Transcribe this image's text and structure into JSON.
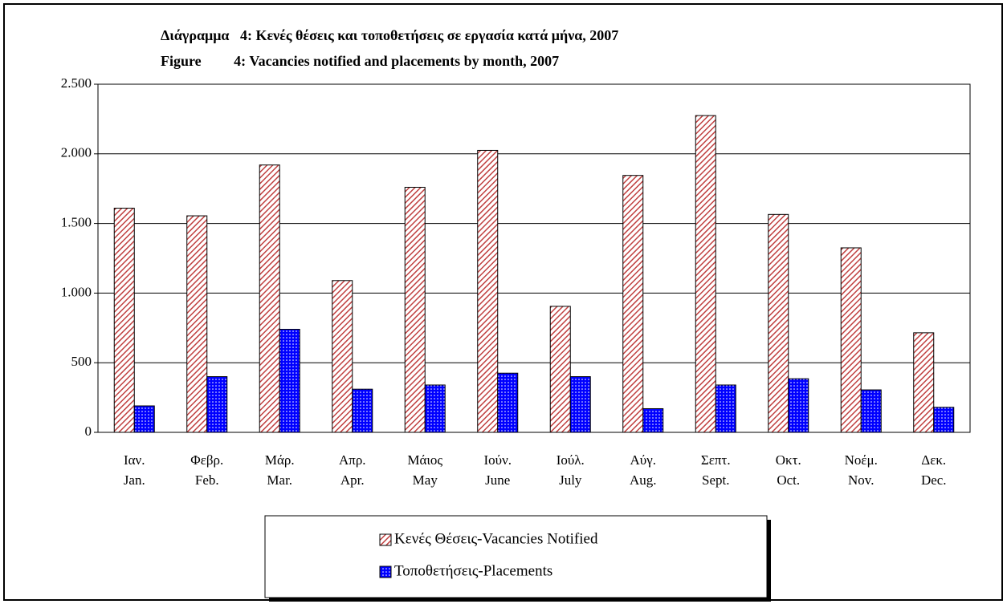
{
  "chart_data": {
    "type": "bar",
    "title": "Διάγραμμα   4: Κενές θέσεις και τοποθετήσεις σε εργασία κατά μήνα, 2007",
    "subtitle": "Figure         4: Vacancies notified and placements by month, 2007",
    "categories": [
      [
        "Ιαν.",
        "Jan."
      ],
      [
        "Φεβρ.",
        "Feb."
      ],
      [
        "Μάρ.",
        "Mar."
      ],
      [
        "Απρ.",
        "Apr."
      ],
      [
        "Μάιος",
        "May"
      ],
      [
        "Ιούν.",
        "June"
      ],
      [
        "Ιούλ.",
        "July"
      ],
      [
        "Αύγ.",
        "Aug."
      ],
      [
        "Σεπτ.",
        "Sept."
      ],
      [
        "Οκτ.",
        "Oct."
      ],
      [
        "Νοέμ.",
        "Nov."
      ],
      [
        "Δεκ.",
        "Dec."
      ]
    ],
    "series": [
      {
        "name": "Κενές Θέσεις-Vacancies Notified",
        "color": "#c04040",
        "values": [
          1610,
          1555,
          1920,
          1090,
          1760,
          2025,
          905,
          1845,
          2275,
          1565,
          1325,
          715
        ]
      },
      {
        "name": "Τοποθετήσεις-Placements",
        "color": "#0000ff",
        "values": [
          190,
          400,
          740,
          310,
          340,
          425,
          400,
          170,
          340,
          385,
          305,
          180
        ]
      }
    ],
    "ylim": [
      0,
      2500
    ],
    "yticks": [
      0,
      500,
      {
        "value": 1000,
        "label": "1.000"
      },
      {
        "value": 1500,
        "label": "1.500"
      },
      {
        "value": 2000,
        "label": "2.000"
      },
      {
        "value": 2500,
        "label": "2.500"
      }
    ],
    "grid": true
  }
}
